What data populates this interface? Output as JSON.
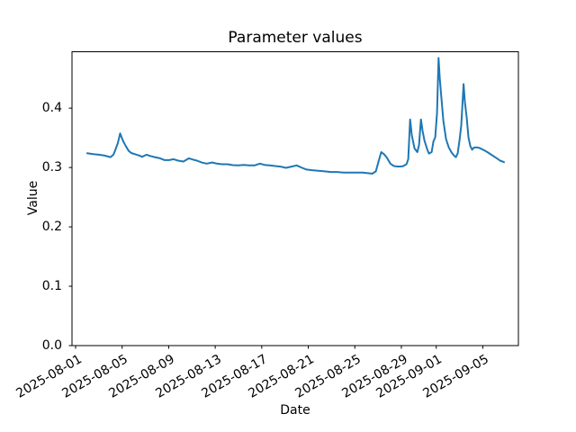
{
  "chart_data": {
    "type": "line",
    "title": "Parameter values",
    "xlabel": "Date",
    "ylabel": "Value",
    "grid": false,
    "legend": false,
    "x_unit": "days since 2025-08-01",
    "xlim": [
      -0.31,
      38.06
    ],
    "ylim": [
      0,
      0.495
    ],
    "x_tick_rotation_deg": 30,
    "x_ticks": [
      {
        "day": 0,
        "label": "2025-08-01"
      },
      {
        "day": 4,
        "label": "2025-08-05"
      },
      {
        "day": 8,
        "label": "2025-08-09"
      },
      {
        "day": 12,
        "label": "2025-08-13"
      },
      {
        "day": 16,
        "label": "2025-08-17"
      },
      {
        "day": 20,
        "label": "2025-08-21"
      },
      {
        "day": 24,
        "label": "2025-08-25"
      },
      {
        "day": 28,
        "label": "2025-08-29"
      },
      {
        "day": 31,
        "label": "2025-09-01"
      },
      {
        "day": 35,
        "label": "2025-09-05"
      }
    ],
    "y_ticks": [
      {
        "value": 0.0,
        "label": "0.0"
      },
      {
        "value": 0.1,
        "label": "0.1"
      },
      {
        "value": 0.2,
        "label": "0.2"
      },
      {
        "value": 0.3,
        "label": "0.3"
      },
      {
        "value": 0.4,
        "label": "0.4"
      }
    ],
    "series": [
      {
        "color": "#1f77b4",
        "points": [
          [
            1.0,
            0.324
          ],
          [
            1.5,
            0.3225
          ],
          [
            2.0,
            0.3215
          ],
          [
            2.5,
            0.32
          ],
          [
            2.78,
            0.3185
          ],
          [
            3.0,
            0.3175
          ],
          [
            3.25,
            0.3215
          ],
          [
            3.4,
            0.329
          ],
          [
            3.63,
            0.341
          ],
          [
            3.83,
            0.3575
          ],
          [
            3.95,
            0.351
          ],
          [
            4.1,
            0.344
          ],
          [
            4.33,
            0.3355
          ],
          [
            4.56,
            0.328
          ],
          [
            4.79,
            0.3245
          ],
          [
            5.1,
            0.3225
          ],
          [
            5.49,
            0.32
          ],
          [
            5.72,
            0.318
          ],
          [
            6.1,
            0.3215
          ],
          [
            6.41,
            0.3195
          ],
          [
            6.8,
            0.3175
          ],
          [
            7.26,
            0.3155
          ],
          [
            7.65,
            0.3125
          ],
          [
            8.04,
            0.3125
          ],
          [
            8.42,
            0.314
          ],
          [
            8.81,
            0.3115
          ],
          [
            9.27,
            0.31
          ],
          [
            9.74,
            0.3155
          ],
          [
            10.05,
            0.3135
          ],
          [
            10.43,
            0.3115
          ],
          [
            10.9,
            0.308
          ],
          [
            11.28,
            0.3065
          ],
          [
            11.75,
            0.3085
          ],
          [
            12.13,
            0.3065
          ],
          [
            12.6,
            0.3055
          ],
          [
            13.06,
            0.3055
          ],
          [
            13.52,
            0.304
          ],
          [
            13.99,
            0.3035
          ],
          [
            14.45,
            0.3045
          ],
          [
            14.91,
            0.3035
          ],
          [
            15.38,
            0.3035
          ],
          [
            15.84,
            0.3065
          ],
          [
            16.23,
            0.3045
          ],
          [
            16.69,
            0.3035
          ],
          [
            17.16,
            0.3025
          ],
          [
            17.62,
            0.3015
          ],
          [
            18.08,
            0.2995
          ],
          [
            18.55,
            0.3015
          ],
          [
            19.01,
            0.3035
          ],
          [
            19.47,
            0.2995
          ],
          [
            19.86,
            0.2965
          ],
          [
            20.32,
            0.2955
          ],
          [
            20.87,
            0.2945
          ],
          [
            21.41,
            0.2935
          ],
          [
            21.95,
            0.2925
          ],
          [
            22.49,
            0.2925
          ],
          [
            23.03,
            0.2915
          ],
          [
            23.57,
            0.2915
          ],
          [
            24.11,
            0.2915
          ],
          [
            24.65,
            0.2915
          ],
          [
            25.12,
            0.2905
          ],
          [
            25.5,
            0.2895
          ],
          [
            25.81,
            0.2935
          ],
          [
            26.04,
            0.31
          ],
          [
            26.27,
            0.326
          ],
          [
            26.51,
            0.3225
          ],
          [
            26.74,
            0.317
          ],
          [
            27.05,
            0.3065
          ],
          [
            27.36,
            0.3025
          ],
          [
            27.74,
            0.3015
          ],
          [
            28.13,
            0.302
          ],
          [
            28.44,
            0.3055
          ],
          [
            28.59,
            0.314
          ],
          [
            28.75,
            0.381
          ],
          [
            28.9,
            0.354
          ],
          [
            29.13,
            0.332
          ],
          [
            29.37,
            0.326
          ],
          [
            29.52,
            0.338
          ],
          [
            29.68,
            0.381
          ],
          [
            29.83,
            0.361
          ],
          [
            29.98,
            0.3455
          ],
          [
            30.22,
            0.3305
          ],
          [
            30.37,
            0.3235
          ],
          [
            30.6,
            0.326
          ],
          [
            30.76,
            0.344
          ],
          [
            30.91,
            0.351
          ],
          [
            31.07,
            0.392
          ],
          [
            31.2,
            0.4845
          ],
          [
            31.3,
            0.451
          ],
          [
            31.45,
            0.4145
          ],
          [
            31.61,
            0.379
          ],
          [
            31.84,
            0.348
          ],
          [
            32.07,
            0.334
          ],
          [
            32.3,
            0.326
          ],
          [
            32.53,
            0.32
          ],
          [
            32.69,
            0.3175
          ],
          [
            32.84,
            0.3235
          ],
          [
            33.0,
            0.346
          ],
          [
            33.15,
            0.371
          ],
          [
            33.35,
            0.4405
          ],
          [
            33.46,
            0.411
          ],
          [
            33.62,
            0.3835
          ],
          [
            33.77,
            0.351
          ],
          [
            33.93,
            0.336
          ],
          [
            34.08,
            0.33
          ],
          [
            34.24,
            0.3335
          ],
          [
            34.47,
            0.334
          ],
          [
            34.7,
            0.333
          ],
          [
            34.93,
            0.331
          ],
          [
            35.16,
            0.3285
          ],
          [
            35.39,
            0.326
          ],
          [
            35.7,
            0.322
          ],
          [
            36.0,
            0.318
          ],
          [
            36.24,
            0.315
          ],
          [
            36.48,
            0.3115
          ],
          [
            36.71,
            0.31
          ],
          [
            36.82,
            0.309
          ]
        ]
      }
    ]
  },
  "colors": {
    "line": "#1f77b4",
    "axis": "#000000",
    "text": "#000000",
    "background": "#ffffff"
  }
}
